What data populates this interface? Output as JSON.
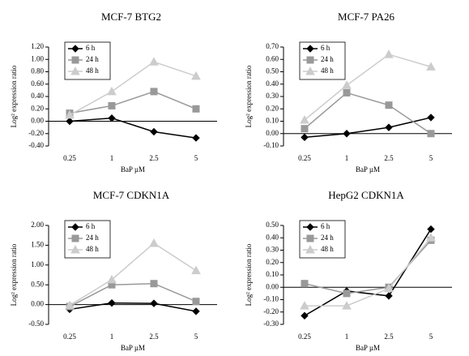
{
  "chart_data": [
    {
      "type": "line",
      "title": "MCF-7 BTG2",
      "x_label": "BaP µM",
      "y_label": "Log² expression ratio",
      "categories": [
        "0.25",
        "1",
        "2.5",
        "5"
      ],
      "legend": "upper left",
      "ylim": [
        -0.4,
        1.2
      ],
      "yticks": [
        {
          "value": -0.4,
          "label": "-0.40"
        },
        {
          "value": -0.2,
          "label": "-0.20"
        },
        {
          "value": 0,
          "label": "0.00"
        },
        {
          "value": 0.2,
          "label": "0.20"
        },
        {
          "value": 0.4,
          "label": "0.40"
        },
        {
          "value": 0.6,
          "label": "0.60"
        },
        {
          "value": 0.8,
          "label": "0.80"
        },
        {
          "value": 1.0,
          "label": "1.00"
        },
        {
          "value": 1.2,
          "label": "1.20"
        }
      ],
      "series": [
        {
          "name": "6 h",
          "color": "#000000",
          "marker": "diamond",
          "values": [
            0.0,
            0.05,
            -0.17,
            -0.27
          ]
        },
        {
          "name": "24 h",
          "color": "#999999",
          "marker": "square",
          "values": [
            0.13,
            0.25,
            0.48,
            0.2
          ]
        },
        {
          "name": "48 h",
          "color": "#cccccc",
          "marker": "triangle",
          "values": [
            0.1,
            0.48,
            0.96,
            0.73
          ]
        }
      ]
    },
    {
      "type": "line",
      "title": "MCF-7 PA26",
      "x_label": "BaP µM",
      "y_label": "Log² expression ratio",
      "categories": [
        "0.25",
        "1",
        "2.5",
        "5"
      ],
      "legend": "upper left",
      "ylim": [
        -0.1,
        0.7
      ],
      "yticks": [
        {
          "value": -0.1,
          "label": "-0.10"
        },
        {
          "value": 0,
          "label": "0.00"
        },
        {
          "value": 0.1,
          "label": "0.10"
        },
        {
          "value": 0.2,
          "label": "0.20"
        },
        {
          "value": 0.3,
          "label": "0.30"
        },
        {
          "value": 0.4,
          "label": "0.40"
        },
        {
          "value": 0.5,
          "label": "0.50"
        },
        {
          "value": 0.6,
          "label": "0.60"
        },
        {
          "value": 0.7,
          "label": "0.70"
        }
      ],
      "series": [
        {
          "name": "6 h",
          "color": "#000000",
          "marker": "diamond",
          "values": [
            -0.03,
            0.0,
            0.05,
            0.13
          ]
        },
        {
          "name": "24 h",
          "color": "#999999",
          "marker": "square",
          "values": [
            0.04,
            0.33,
            0.23,
            0.0
          ]
        },
        {
          "name": "48 h",
          "color": "#cccccc",
          "marker": "triangle",
          "values": [
            0.11,
            0.39,
            0.64,
            0.54
          ]
        }
      ]
    },
    {
      "type": "line",
      "title": "MCF-7 CDKN1A",
      "x_label": "BaP µM",
      "y_label": "Log² expression ratio",
      "categories": [
        "0.25",
        "1",
        "2.5",
        "5"
      ],
      "legend": "upper left",
      "ylim": [
        -0.5,
        2.0
      ],
      "yticks": [
        {
          "value": -0.5,
          "label": "-0.50"
        },
        {
          "value": 0,
          "label": "0.00"
        },
        {
          "value": 0.5,
          "label": "0.50"
        },
        {
          "value": 1.0,
          "label": "1.00"
        },
        {
          "value": 1.5,
          "label": "1.50"
        },
        {
          "value": 2.0,
          "label": "2.00"
        }
      ],
      "series": [
        {
          "name": "6 h",
          "color": "#000000",
          "marker": "diamond",
          "values": [
            -0.12,
            0.04,
            0.03,
            -0.17
          ]
        },
        {
          "name": "24 h",
          "color": "#999999",
          "marker": "square",
          "values": [
            -0.05,
            0.5,
            0.53,
            0.08
          ]
        },
        {
          "name": "48 h",
          "color": "#cccccc",
          "marker": "triangle",
          "values": [
            -0.02,
            0.63,
            1.55,
            0.86
          ]
        }
      ]
    },
    {
      "type": "line",
      "title": "HepG2 CDKN1A",
      "x_label": "BaP µM",
      "y_label": "Log² expression ratio",
      "categories": [
        "0.25",
        "1",
        "2.5",
        "5"
      ],
      "legend": "upper left",
      "ylim": [
        -0.3,
        0.5
      ],
      "yticks": [
        {
          "value": -0.3,
          "label": "-0.30"
        },
        {
          "value": -0.2,
          "label": "-0.20"
        },
        {
          "value": -0.1,
          "label": "-0.10"
        },
        {
          "value": 0,
          "label": "0.00"
        },
        {
          "value": 0.1,
          "label": "0.10"
        },
        {
          "value": 0.2,
          "label": "0.20"
        },
        {
          "value": 0.3,
          "label": "0.30"
        },
        {
          "value": 0.4,
          "label": "0.40"
        },
        {
          "value": 0.5,
          "label": "0.50"
        }
      ],
      "series": [
        {
          "name": "6 h",
          "color": "#000000",
          "marker": "diamond",
          "values": [
            -0.23,
            -0.03,
            -0.07,
            0.47
          ]
        },
        {
          "name": "24 h",
          "color": "#999999",
          "marker": "square",
          "values": [
            0.03,
            -0.05,
            0.0,
            0.38
          ]
        },
        {
          "name": "48 h",
          "color": "#cccccc",
          "marker": "triangle",
          "values": [
            -0.15,
            -0.15,
            -0.01,
            0.4
          ]
        }
      ]
    }
  ]
}
